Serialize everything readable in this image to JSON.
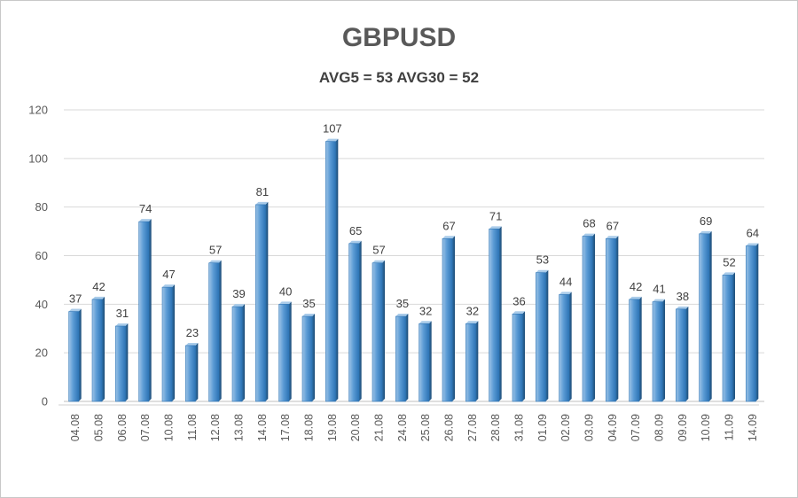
{
  "chart_data": {
    "type": "bar",
    "title": "GBPUSD",
    "subtitle": "AVG5 = 53 AVG30 = 52",
    "xlabel": "",
    "ylabel": "",
    "ylim": [
      0,
      120
    ],
    "yticks": [
      0,
      20,
      40,
      60,
      80,
      100,
      120
    ],
    "grid": true,
    "bar_color": "#5b9bd5",
    "categories": [
      "04.08",
      "05.08",
      "06.08",
      "07.08",
      "10.08",
      "11.08",
      "12.08",
      "13.08",
      "14.08",
      "17.08",
      "18.08",
      "19.08",
      "20.08",
      "21.08",
      "24.08",
      "25.08",
      "26.08",
      "27.08",
      "28.08",
      "31.08",
      "01.09",
      "02.09",
      "03.09",
      "04.09",
      "07.09",
      "08.09",
      "09.09",
      "10.09",
      "11.09",
      "14.09"
    ],
    "values": [
      37,
      42,
      31,
      74,
      47,
      23,
      57,
      39,
      81,
      40,
      35,
      107,
      65,
      57,
      35,
      32,
      67,
      32,
      71,
      36,
      53,
      44,
      68,
      67,
      42,
      41,
      38,
      69,
      52,
      64
    ]
  }
}
